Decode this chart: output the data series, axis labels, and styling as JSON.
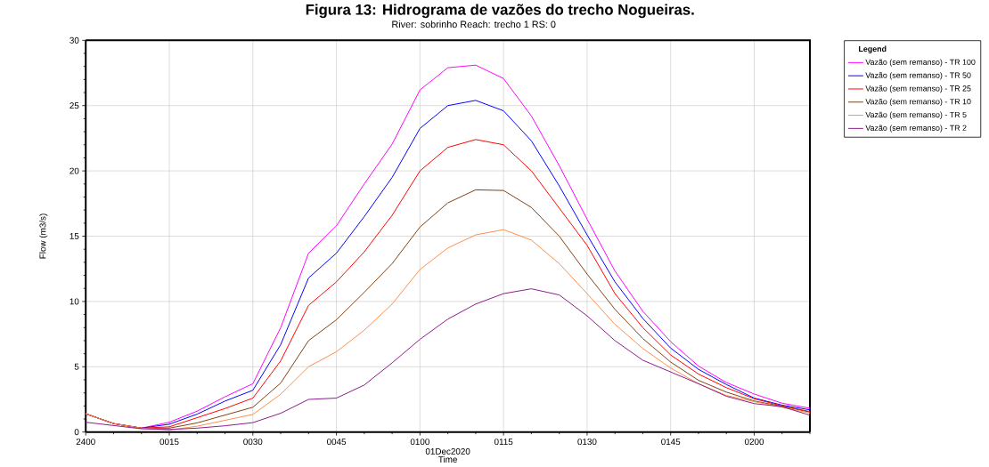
{
  "chart_data": {
    "type": "line",
    "title": "Figura 13: Hidrograma de vazões do trecho Nogueiras.",
    "subtitle": "River: sobrinho   Reach: trecho 1   RS: 0",
    "xlabel": "Time",
    "ylabel": "Flow (m3/s)",
    "legend_title": "Legend",
    "annotations": [
      "01Dec2020"
    ],
    "categories": [
      "2400",
      null,
      null,
      "0015",
      null,
      null,
      "0030",
      null,
      null,
      "0045",
      null,
      null,
      "0100",
      null,
      null,
      "0115",
      null,
      null,
      "0130",
      null,
      null,
      "0145",
      null,
      null,
      "0200",
      null,
      null
    ],
    "ylim": [
      0,
      30
    ],
    "yticks": [
      0,
      5,
      10,
      15,
      20,
      25,
      30
    ],
    "grid": true,
    "legend": "right",
    "line_style": "solid",
    "series": [
      {
        "name": "Vazão (sem remanso) - TR 100",
        "color": "#ff00ff",
        "values": [
          1.4,
          0.65,
          0.3,
          0.75,
          1.6,
          2.7,
          3.7,
          8.0,
          13.7,
          15.8,
          19.0,
          22.05,
          26.2,
          27.9,
          28.1,
          27.07,
          24.2,
          20.4,
          16.3,
          12.33,
          9.25,
          6.92,
          5.05,
          3.79,
          2.91,
          2.21,
          1.82
        ]
      },
      {
        "name": "Vazão (sem remanso) - TR 50",
        "color": "#0000ff",
        "values": [
          1.4,
          0.65,
          0.3,
          0.6,
          1.37,
          2.37,
          3.2,
          6.7,
          11.8,
          13.7,
          16.5,
          19.5,
          23.25,
          25.0,
          25.4,
          24.6,
          22.3,
          18.85,
          15.1,
          11.5,
          8.7,
          6.43,
          4.8,
          3.64,
          2.6,
          2.06,
          1.7
        ]
      },
      {
        "name": "Vazão (sem remanso) - TR 25",
        "color": "#ff0000",
        "values": [
          1.4,
          0.65,
          0.3,
          0.4,
          1.1,
          1.8,
          2.6,
          5.45,
          9.7,
          11.5,
          13.8,
          16.6,
          20.0,
          21.8,
          22.4,
          22.0,
          20.0,
          17.15,
          14.3,
          10.6,
          8.0,
          5.9,
          4.44,
          3.4,
          2.55,
          2.0,
          1.57
        ]
      },
      {
        "name": "Vazão (sem remanso) - TR 10",
        "color": "#804010",
        "values": [
          1.4,
          0.65,
          0.3,
          0.3,
          0.7,
          1.3,
          1.9,
          3.75,
          7.0,
          8.6,
          10.7,
          12.9,
          15.7,
          17.55,
          18.55,
          18.5,
          17.2,
          15.0,
          12.1,
          9.4,
          7.16,
          5.36,
          3.96,
          3.06,
          2.38,
          1.97,
          1.53
        ]
      },
      {
        "name": "Vazão (sem remanso) - TR 5",
        "color": "#ff8c4a",
        "values": [
          1.4,
          0.65,
          0.3,
          0.15,
          0.45,
          0.9,
          1.35,
          2.9,
          5.0,
          6.15,
          7.8,
          9.8,
          12.45,
          14.1,
          15.1,
          15.5,
          14.7,
          12.9,
          10.6,
          8.25,
          6.4,
          4.9,
          3.7,
          2.8,
          2.33,
          1.9,
          1.45
        ]
      },
      {
        "name": "Vazão (sem remanso) - TR 2",
        "color": "#8b1a8b",
        "values": [
          0.75,
          0.5,
          0.25,
          0.2,
          0.3,
          0.48,
          0.72,
          1.44,
          2.5,
          2.6,
          3.6,
          5.3,
          7.1,
          8.65,
          9.8,
          10.6,
          10.97,
          10.5,
          8.9,
          7.0,
          5.5,
          4.6,
          3.7,
          2.74,
          2.18,
          1.94,
          1.29
        ]
      }
    ]
  }
}
